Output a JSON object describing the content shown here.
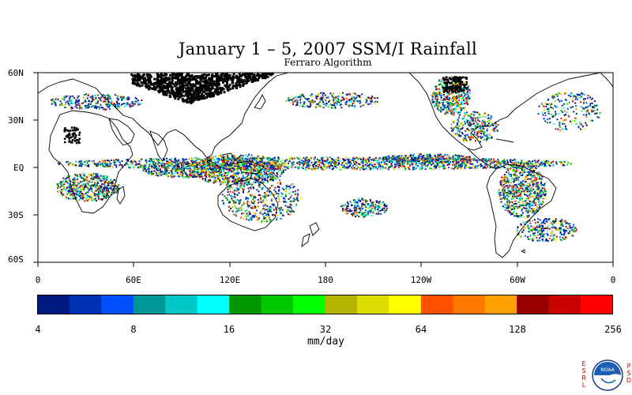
{
  "title": "January 1 – 5, 2007 SSM/I Rainfall",
  "subtitle": "Ferraro Algorithm",
  "lat_labels": [
    "60N",
    "30N",
    "EQ",
    "30S",
    "60S"
  ],
  "lon_labels": [
    "0",
    "60E",
    "120E",
    "180",
    "120W",
    "60W",
    "0"
  ],
  "colorbar": {
    "units": "mm/day",
    "labels": [
      "4",
      "8",
      "16",
      "32",
      "64",
      "128",
      "256"
    ],
    "colors": [
      "#001a80",
      "#0030b4",
      "#0050ff",
      "#009696",
      "#00c8c8",
      "#00ffff",
      "#009600",
      "#00c800",
      "#00ff00",
      "#b4b400",
      "#dcdc00",
      "#ffff00",
      "#ff5000",
      "#ff7800",
      "#ffa000",
      "#960000",
      "#c80000",
      "#ff0000"
    ]
  },
  "logo": {
    "left_text": "ESRL",
    "right_text": "PSD",
    "badge": "NOAA"
  }
}
